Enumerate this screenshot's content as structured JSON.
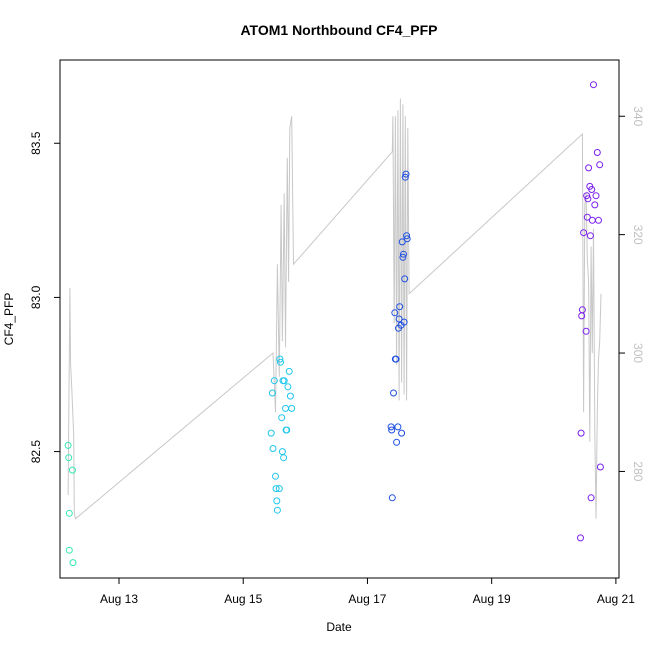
{
  "chart_data": {
    "type": "scatter",
    "title": "ATOM1 Northbound CF4_PFP",
    "xlabel": "Date",
    "ylabel": "CF4_PFP",
    "x_ticks": [
      {
        "day": 13,
        "label": "Aug 13"
      },
      {
        "day": 15,
        "label": "Aug 15"
      },
      {
        "day": 17,
        "label": "Aug 17"
      },
      {
        "day": 19,
        "label": "Aug 19"
      },
      {
        "day": 21,
        "label": "Aug 21"
      }
    ],
    "xlim": [
      12.05,
      21.05
    ],
    "ylim": [
      82.09,
      83.77
    ],
    "y_ticks": [
      {
        "value": 82.5,
        "label": "82.5"
      },
      {
        "value": 83.0,
        "label": "83.0"
      },
      {
        "value": 83.5,
        "label": "83.5"
      }
    ],
    "y2lim": [
      262.0,
      349.5
    ],
    "y2_ticks": [
      {
        "value": 280,
        "label": "280"
      },
      {
        "value": 300,
        "label": "300"
      },
      {
        "value": 320,
        "label": "320"
      },
      {
        "value": 340,
        "label": "340"
      }
    ],
    "colors": {
      "day1": "#33e6b3",
      "day2": "#1fc6ee",
      "day3": "#1f4fe0",
      "day4": "#7a1fee",
      "altitude_line": "#c8c8c8"
    },
    "series": [
      {
        "color_key": "day1",
        "points": [
          [
            12.18,
            82.52
          ],
          [
            12.19,
            82.48
          ],
          [
            12.2,
            82.3
          ],
          [
            12.2,
            82.18
          ],
          [
            12.25,
            82.44
          ],
          [
            12.26,
            82.14
          ]
        ]
      },
      {
        "color_key": "day2",
        "points": [
          [
            15.45,
            82.56
          ],
          [
            15.47,
            82.69
          ],
          [
            15.48,
            82.51
          ],
          [
            15.5,
            82.73
          ],
          [
            15.52,
            82.42
          ],
          [
            15.53,
            82.38
          ],
          [
            15.54,
            82.34
          ],
          [
            15.55,
            82.31
          ],
          [
            15.58,
            82.38
          ],
          [
            15.59,
            82.8
          ],
          [
            15.6,
            82.79
          ],
          [
            15.62,
            82.61
          ],
          [
            15.63,
            82.5
          ],
          [
            15.64,
            82.73
          ],
          [
            15.65,
            82.48
          ],
          [
            15.66,
            82.73
          ],
          [
            15.68,
            82.64
          ],
          [
            15.69,
            82.57
          ],
          [
            15.7,
            82.57
          ],
          [
            15.72,
            82.71
          ],
          [
            15.74,
            82.76
          ],
          [
            15.76,
            82.68
          ],
          [
            15.78,
            82.64
          ]
        ]
      },
      {
        "color_key": "day3",
        "points": [
          [
            17.38,
            82.58
          ],
          [
            17.39,
            82.57
          ],
          [
            17.4,
            82.35
          ],
          [
            17.42,
            82.69
          ],
          [
            17.44,
            82.95
          ],
          [
            17.45,
            82.8
          ],
          [
            17.46,
            82.8
          ],
          [
            17.47,
            82.53
          ],
          [
            17.49,
            82.58
          ],
          [
            17.5,
            82.9
          ],
          [
            17.51,
            82.93
          ],
          [
            17.52,
            82.97
          ],
          [
            17.54,
            82.91
          ],
          [
            17.55,
            82.56
          ],
          [
            17.56,
            83.18
          ],
          [
            17.57,
            83.13
          ],
          [
            17.58,
            83.14
          ],
          [
            17.59,
            82.92
          ],
          [
            17.6,
            83.06
          ],
          [
            17.61,
            83.39
          ],
          [
            17.62,
            83.4
          ],
          [
            17.63,
            83.2
          ],
          [
            17.64,
            83.19
          ]
        ]
      },
      {
        "color_key": "day4",
        "points": [
          [
            20.43,
            82.22
          ],
          [
            20.44,
            82.56
          ],
          [
            20.45,
            82.94
          ],
          [
            20.46,
            82.96
          ],
          [
            20.48,
            83.21
          ],
          [
            20.52,
            82.89
          ],
          [
            20.53,
            83.33
          ],
          [
            20.54,
            83.26
          ],
          [
            20.55,
            83.32
          ],
          [
            20.56,
            83.42
          ],
          [
            20.58,
            83.36
          ],
          [
            20.59,
            83.2
          ],
          [
            20.6,
            82.35
          ],
          [
            20.61,
            83.35
          ],
          [
            20.62,
            83.25
          ],
          [
            20.64,
            83.69
          ],
          [
            20.66,
            83.3
          ],
          [
            20.68,
            83.33
          ],
          [
            20.7,
            83.47
          ],
          [
            20.72,
            83.25
          ],
          [
            20.74,
            83.43
          ],
          [
            20.75,
            82.45
          ]
        ]
      }
    ],
    "altitude_line": [
      [
        12.18,
        276
      ],
      [
        12.21,
        311
      ],
      [
        12.22,
        298
      ],
      [
        12.24,
        294
      ],
      [
        12.27,
        286
      ],
      [
        12.28,
        273
      ],
      [
        12.3,
        272
      ],
      [
        15.48,
        300
      ],
      [
        15.52,
        290
      ],
      [
        15.55,
        315
      ],
      [
        15.58,
        296
      ],
      [
        15.61,
        325
      ],
      [
        15.63,
        302
      ],
      [
        15.66,
        327
      ],
      [
        15.68,
        301
      ],
      [
        15.71,
        333
      ],
      [
        15.73,
        312
      ],
      [
        15.75,
        338
      ],
      [
        15.78,
        340
      ],
      [
        15.81,
        315
      ],
      [
        17.4,
        334
      ],
      [
        17.41,
        340
      ],
      [
        17.43,
        305
      ],
      [
        17.45,
        340
      ],
      [
        17.47,
        298
      ],
      [
        17.49,
        341
      ],
      [
        17.51,
        292
      ],
      [
        17.53,
        343
      ],
      [
        17.55,
        295
      ],
      [
        17.57,
        342
      ],
      [
        17.59,
        293
      ],
      [
        17.61,
        340
      ],
      [
        17.63,
        292
      ],
      [
        17.65,
        338
      ],
      [
        17.67,
        310
      ],
      [
        20.46,
        337
      ],
      [
        20.48,
        290
      ],
      [
        20.5,
        325
      ],
      [
        20.52,
        327
      ],
      [
        20.54,
        316
      ],
      [
        20.56,
        312
      ],
      [
        20.58,
        285
      ],
      [
        20.6,
        318
      ],
      [
        20.62,
        300
      ],
      [
        20.64,
        321
      ],
      [
        20.66,
        287
      ],
      [
        20.68,
        272
      ],
      [
        20.7,
        290
      ],
      [
        20.72,
        299
      ],
      [
        20.74,
        302
      ],
      [
        20.76,
        310
      ]
    ]
  }
}
